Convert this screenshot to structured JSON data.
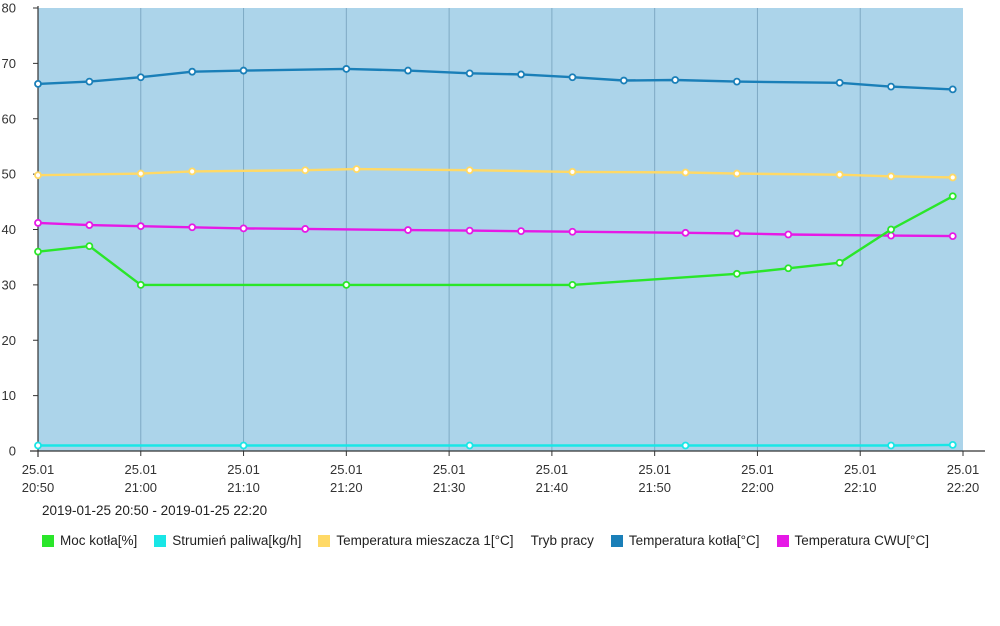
{
  "chart_data": {
    "type": "line",
    "background": "#acd4ea",
    "grid_color": "#7ea9c4",
    "axis_color": "#333333",
    "ylim": [
      0,
      80
    ],
    "y_ticks": [
      "0",
      "10",
      "20",
      "30",
      "40",
      "50",
      "60",
      "70",
      "80"
    ],
    "x_ticks": [
      {
        "date": "25.01",
        "time": "20:50"
      },
      {
        "date": "25.01",
        "time": "21:00"
      },
      {
        "date": "25.01",
        "time": "21:10"
      },
      {
        "date": "25.01",
        "time": "21:20"
      },
      {
        "date": "25.01",
        "time": "21:30"
      },
      {
        "date": "25.01",
        "time": "21:40"
      },
      {
        "date": "25.01",
        "time": "21:50"
      },
      {
        "date": "25.01",
        "time": "22:00"
      },
      {
        "date": "25.01",
        "time": "22:10"
      },
      {
        "date": "25.01",
        "time": "22:20"
      }
    ],
    "x_start": "20:50",
    "x_end": "22:20",
    "series": [
      {
        "name": "Temperatura kotła[°C]",
        "color": "#1a7fb8",
        "points": [
          [
            "20:50",
            66.3
          ],
          [
            "20:55",
            66.7
          ],
          [
            "21:00",
            67.5
          ],
          [
            "21:05",
            68.5
          ],
          [
            "21:10",
            68.7
          ],
          [
            "21:20",
            69.0
          ],
          [
            "21:26",
            68.7
          ],
          [
            "21:32",
            68.2
          ],
          [
            "21:37",
            68.0
          ],
          [
            "21:42",
            67.5
          ],
          [
            "21:47",
            66.9
          ],
          [
            "21:52",
            67.0
          ],
          [
            "21:58",
            66.7
          ],
          [
            "22:08",
            66.5
          ],
          [
            "22:13",
            65.8
          ],
          [
            "22:19",
            65.3
          ]
        ]
      },
      {
        "name": "Temperatura mieszacza 1[°C]",
        "color": "#ffd966",
        "points": [
          [
            "20:50",
            49.8
          ],
          [
            "21:00",
            50.1
          ],
          [
            "21:05",
            50.5
          ],
          [
            "21:16",
            50.7
          ],
          [
            "21:21",
            50.9
          ],
          [
            "21:32",
            50.7
          ],
          [
            "21:42",
            50.4
          ],
          [
            "21:53",
            50.3
          ],
          [
            "21:58",
            50.1
          ],
          [
            "22:08",
            49.9
          ],
          [
            "22:13",
            49.6
          ],
          [
            "22:19",
            49.4
          ]
        ]
      },
      {
        "name": "Temperatura CWU[°C]",
        "color": "#e619e6",
        "points": [
          [
            "20:50",
            41.2
          ],
          [
            "20:55",
            40.8
          ],
          [
            "21:00",
            40.6
          ],
          [
            "21:05",
            40.4
          ],
          [
            "21:10",
            40.2
          ],
          [
            "21:16",
            40.1
          ],
          [
            "21:26",
            39.9
          ],
          [
            "21:32",
            39.8
          ],
          [
            "21:37",
            39.7
          ],
          [
            "21:42",
            39.6
          ],
          [
            "21:53",
            39.4
          ],
          [
            "21:58",
            39.3
          ],
          [
            "22:03",
            39.1
          ],
          [
            "22:13",
            38.9
          ],
          [
            "22:19",
            38.8
          ]
        ]
      },
      {
        "name": "Moc kotła[%]",
        "color": "#2ae62a",
        "points": [
          [
            "20:50",
            36.0
          ],
          [
            "20:55",
            37.0
          ],
          [
            "21:00",
            30.0
          ],
          [
            "21:20",
            30.0
          ],
          [
            "21:42",
            30.0
          ],
          [
            "21:58",
            32.0
          ],
          [
            "22:03",
            33.0
          ],
          [
            "22:08",
            34.0
          ],
          [
            "22:13",
            40.0
          ],
          [
            "22:19",
            46.0
          ]
        ]
      },
      {
        "name": "Strumień paliwa[kg/h]",
        "color": "#19e6e6",
        "points": [
          [
            "20:50",
            1.0
          ],
          [
            "21:10",
            1.0
          ],
          [
            "21:32",
            1.0
          ],
          [
            "21:53",
            1.0
          ],
          [
            "22:13",
            1.0
          ],
          [
            "22:19",
            1.1
          ]
        ]
      }
    ]
  },
  "range_label": "2019-01-25 20:50 - 2019-01-25 22:20",
  "legend": [
    {
      "label": "Moc kotła[%]",
      "color": "#2ae62a"
    },
    {
      "label": "Strumień paliwa[kg/h]",
      "color": "#19e6e6"
    },
    {
      "label": "Temperatura mieszacza 1[°C]",
      "color": "#ffd966"
    },
    {
      "label": "Tryb pracy",
      "color": ""
    },
    {
      "label": "Temperatura kotła[°C]",
      "color": "#1a7fb8"
    },
    {
      "label": "Temperatura CWU[°C]",
      "color": "#e619e6"
    }
  ]
}
